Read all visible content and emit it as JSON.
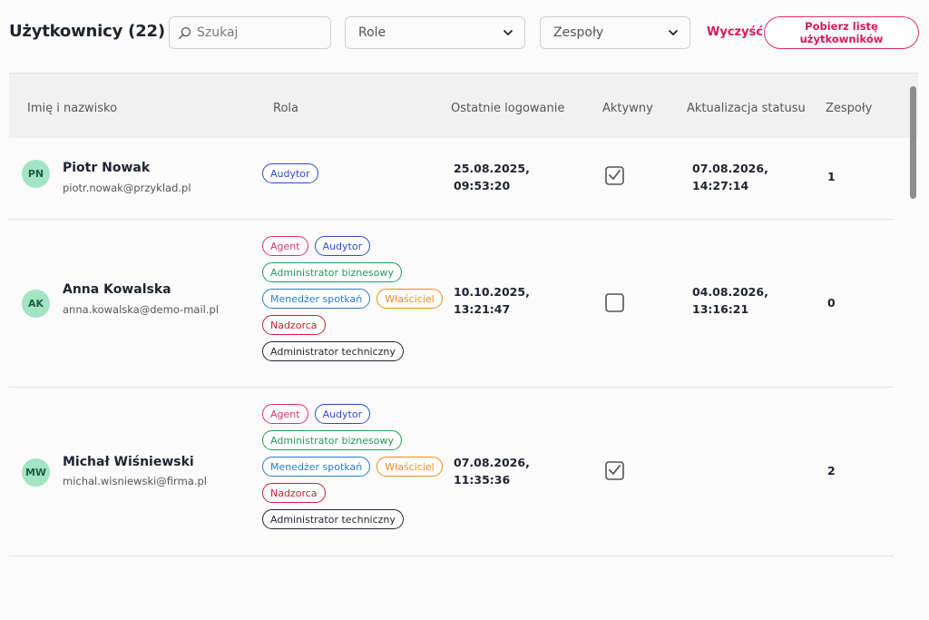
{
  "header": {
    "title": "Użytkownicy (22)",
    "search_placeholder": "Szukaj",
    "roles_filter": "Role",
    "teams_filter": "Zespoły",
    "clear_label": "Wyczyść",
    "download_label": "Pobierz listę użytkowników"
  },
  "table": {
    "columns": [
      "Imię i nazwisko",
      "Rola",
      "Ostatnie logowanie",
      "Aktywny",
      "Aktualizacja statusu",
      "Zespoły"
    ],
    "rows": [
      {
        "initials": "PN",
        "name": "Piotr Nowak",
        "email": "piotr.nowak@przyklad.pl",
        "roles": [
          "Audytor"
        ],
        "last_login": "25.08.2025,\n09:53:20",
        "active": true,
        "status_update": "07.08.2026,\n14:27:14",
        "teams": "1"
      },
      {
        "initials": "AK",
        "name": "Anna Kowalska",
        "email": "anna.kowalska@demo-mail.pl",
        "roles": [
          "Agent",
          "Audytor",
          "Administrator biznesowy",
          "Menedżer spotkań",
          "Właściciel",
          "Nadzorca",
          "Administrator techniczny"
        ],
        "last_login": "10.10.2025,\n13:21:47",
        "active": false,
        "status_update": "04.08.2026,\n13:16:21",
        "teams": "0"
      },
      {
        "initials": "MW",
        "name": "Michał Wiśniewski",
        "email": "michal.wisniewski@firma.pl",
        "roles": [
          "Agent",
          "Audytor",
          "Administrator biznesowy",
          "Menedżer spotkań",
          "Właściciel",
          "Nadzorca",
          "Administrator techniczny"
        ],
        "last_login": "07.08.2026,\n11:35:36",
        "active": true,
        "status_update": "",
        "teams": "2"
      }
    ]
  },
  "role_colors": {
    "Agent": "#e0306c",
    "Audytor": "#2b4bd1",
    "Administrator biznesowy": "#1f9d55",
    "Menedżer spotkań": "#2b7bd1",
    "Właściciel": "#f08a1c",
    "Nadzorca": "#c82030",
    "Administrator techniczny": "#1f2330"
  },
  "icons": {
    "search": "search-icon",
    "dropdown": "chevron-down-icon",
    "checkbox_checked": "checkbox-checked-icon",
    "checkbox_unchecked": "checkbox-unchecked-icon"
  }
}
